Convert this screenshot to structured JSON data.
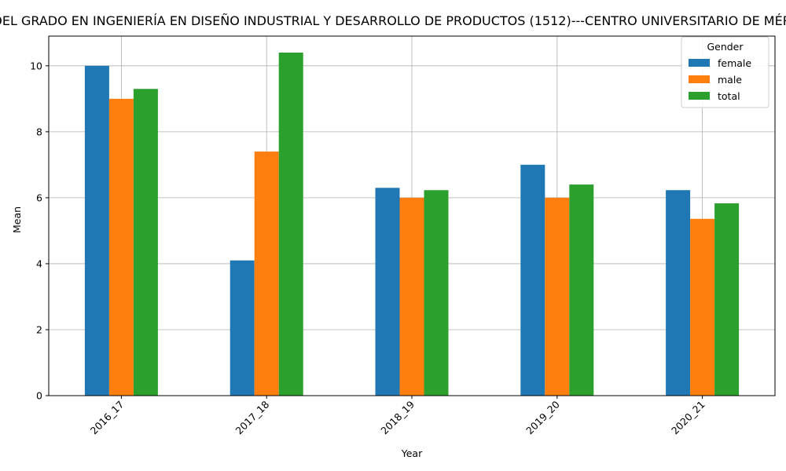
{
  "chart_data": {
    "type": "bar",
    "title": "DATOS DEL GRADO EN INGENIERÍA EN DISEÑO INDUSTRIAL Y DESARROLLO DE PRODUCTOS (1512)---CENTRO UNIVERSITARIO DE MÉRIDA (CUM)",
    "xlabel": "Year",
    "ylabel": "Mean",
    "categories": [
      "2016_17",
      "2017_18",
      "2018_19",
      "2019_20",
      "2020_21"
    ],
    "series": [
      {
        "name": "female",
        "color": "#1f77b4",
        "values": [
          10.0,
          4.1,
          6.3,
          7.0,
          6.23
        ]
      },
      {
        "name": "male",
        "color": "#ff7f0e",
        "values": [
          9.0,
          7.4,
          6.0,
          6.0,
          5.36
        ]
      },
      {
        "name": "total",
        "color": "#2ca02c",
        "values": [
          9.3,
          10.4,
          6.23,
          6.4,
          5.83
        ]
      }
    ],
    "ylim": [
      0,
      10.9
    ],
    "yticks": [
      0,
      2,
      4,
      6,
      8,
      10
    ],
    "grid": true,
    "legend": {
      "title": "Gender",
      "placement": "top-right"
    }
  }
}
